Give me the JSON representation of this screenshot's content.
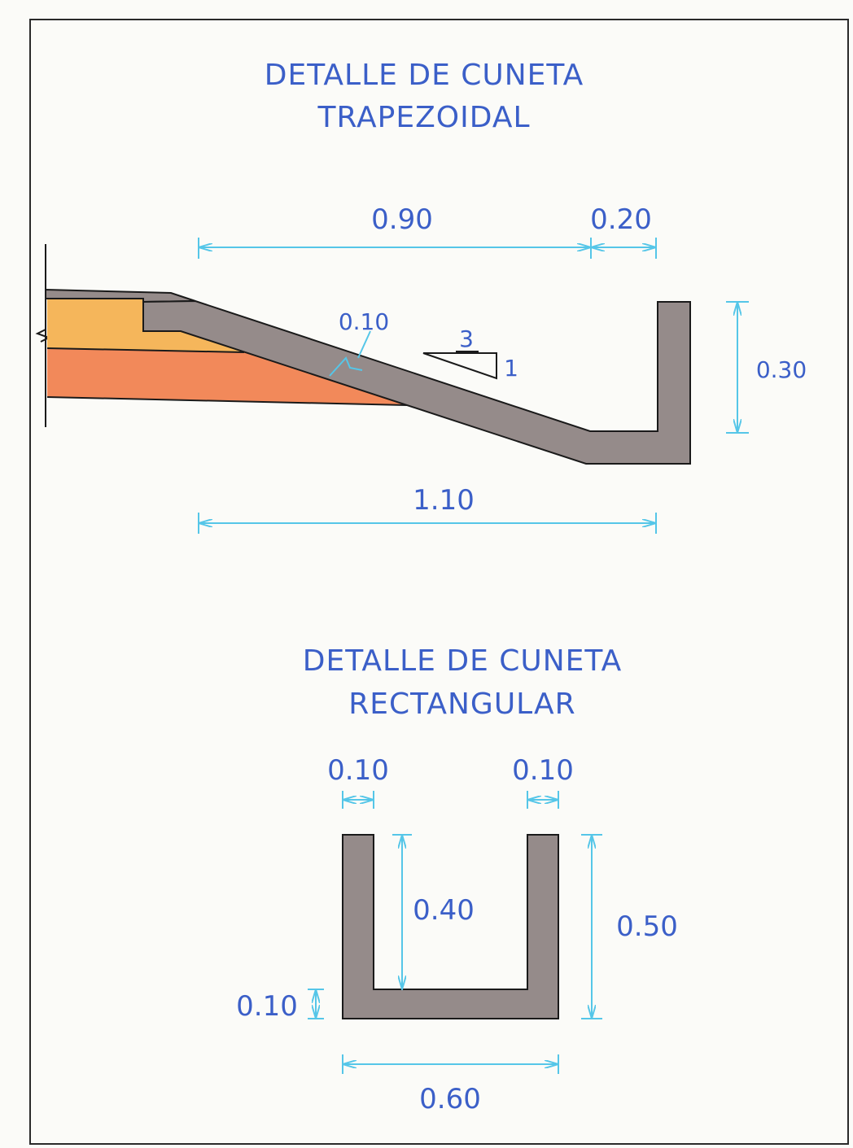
{
  "trapezoidal": {
    "title_line1": "DETALLE DE CUNETA",
    "title_line2": "TRAPEZOIDAL",
    "dim_top_left": "0.90",
    "dim_top_right": "0.20",
    "dim_thickness": "0.10",
    "slope_run": "3",
    "slope_rise": "1",
    "dim_height": "0.30",
    "dim_bottom": "1.10"
  },
  "rectangular": {
    "title_line1": "DETALLE DE CUNETA",
    "title_line2": "RECTANGULAR",
    "dim_left_wall": "0.10",
    "dim_right_wall": "0.10",
    "dim_inner_height": "0.40",
    "dim_total_height": "0.50",
    "dim_base_thickness": "0.10",
    "dim_width": "0.60"
  },
  "colors": {
    "concrete": "#958b8a",
    "base_layer": "#f5b65b",
    "subbase_layer": "#f2895a",
    "dimension": "#55c6e8",
    "text": "#3b5fc8"
  }
}
